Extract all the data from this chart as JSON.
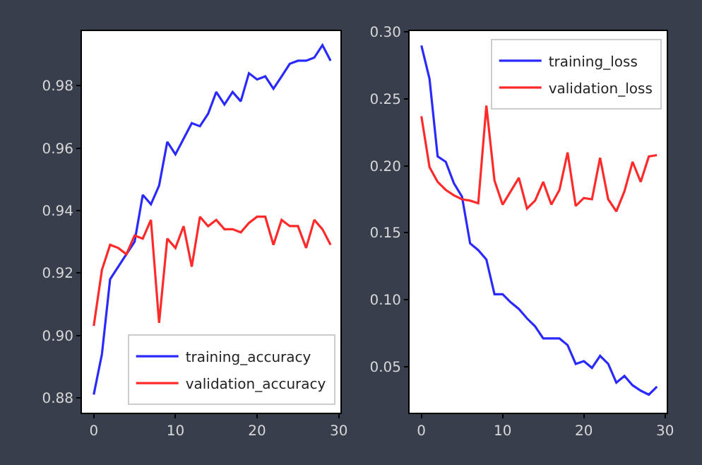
{
  "chart_data": [
    {
      "type": "line",
      "x": [
        0,
        1,
        2,
        3,
        4,
        5,
        6,
        7,
        8,
        9,
        10,
        11,
        12,
        13,
        14,
        15,
        16,
        17,
        18,
        19,
        20,
        21,
        22,
        23,
        24,
        25,
        26,
        27,
        28,
        29
      ],
      "xlim": [
        -1.45,
        30.2
      ],
      "xticks": [
        0,
        10,
        20,
        30
      ],
      "ylim": [
        0.8752,
        0.9975
      ],
      "yticks": [
        {
          "value": 0.88,
          "label": "0.88"
        },
        {
          "value": 0.9,
          "label": "0.90"
        },
        {
          "value": 0.92,
          "label": "0.92"
        },
        {
          "value": 0.94,
          "label": "0.94"
        },
        {
          "value": 0.96,
          "label": "0.96"
        },
        {
          "value": 0.98,
          "label": "0.98"
        }
      ],
      "legend": "bottom right",
      "grid": false,
      "series": [
        {
          "name": "training_accuracy",
          "color": "#2a2aff",
          "values": [
            0.881,
            0.894,
            0.918,
            0.922,
            0.926,
            0.93,
            0.945,
            0.942,
            0.948,
            0.962,
            0.958,
            0.963,
            0.968,
            0.967,
            0.971,
            0.978,
            0.974,
            0.978,
            0.975,
            0.984,
            0.982,
            0.983,
            0.979,
            0.983,
            0.987,
            0.988,
            0.988,
            0.989,
            0.993,
            0.988
          ]
        },
        {
          "name": "validation_accuracy",
          "color": "#ff2a2a",
          "values": [
            0.903,
            0.921,
            0.929,
            0.928,
            0.926,
            0.932,
            0.931,
            0.937,
            0.904,
            0.931,
            0.928,
            0.935,
            0.922,
            0.938,
            0.935,
            0.937,
            0.934,
            0.934,
            0.933,
            0.936,
            0.938,
            0.938,
            0.929,
            0.937,
            0.935,
            0.935,
            0.928,
            0.937,
            0.934,
            0.929
          ]
        }
      ]
    },
    {
      "type": "line",
      "x": [
        0,
        1,
        2,
        3,
        4,
        5,
        6,
        7,
        8,
        9,
        10,
        11,
        12,
        13,
        14,
        15,
        16,
        17,
        18,
        19,
        20,
        21,
        22,
        23,
        24,
        25,
        26,
        27,
        28,
        29
      ],
      "xlim": [
        -1.45,
        30.2
      ],
      "xticks": [
        0,
        10,
        20,
        30
      ],
      "ylim": [
        0.0155,
        0.3007
      ],
      "yticks": [
        {
          "value": 0.05,
          "label": "0.05"
        },
        {
          "value": 0.1,
          "label": "0.10"
        },
        {
          "value": 0.15,
          "label": "0.15"
        },
        {
          "value": 0.2,
          "label": "0.20"
        },
        {
          "value": 0.25,
          "label": "0.25"
        },
        {
          "value": 0.3,
          "label": "0.30"
        }
      ],
      "legend": "top right",
      "grid": false,
      "series": [
        {
          "name": "training_loss",
          "color": "#2a2aff",
          "values": [
            0.29,
            0.265,
            0.207,
            0.203,
            0.187,
            0.177,
            0.142,
            0.137,
            0.13,
            0.104,
            0.104,
            0.098,
            0.093,
            0.086,
            0.08,
            0.071,
            0.071,
            0.071,
            0.066,
            0.052,
            0.054,
            0.049,
            0.058,
            0.052,
            0.038,
            0.043,
            0.036,
            0.032,
            0.029,
            0.035
          ]
        },
        {
          "name": "validation_loss",
          "color": "#ff2a2a",
          "values": [
            0.237,
            0.199,
            0.188,
            0.182,
            0.178,
            0.175,
            0.174,
            0.172,
            0.245,
            0.189,
            0.171,
            0.181,
            0.191,
            0.168,
            0.174,
            0.188,
            0.171,
            0.182,
            0.21,
            0.17,
            0.176,
            0.175,
            0.206,
            0.175,
            0.166,
            0.181,
            0.203,
            0.188,
            0.207,
            0.208
          ]
        }
      ]
    }
  ]
}
